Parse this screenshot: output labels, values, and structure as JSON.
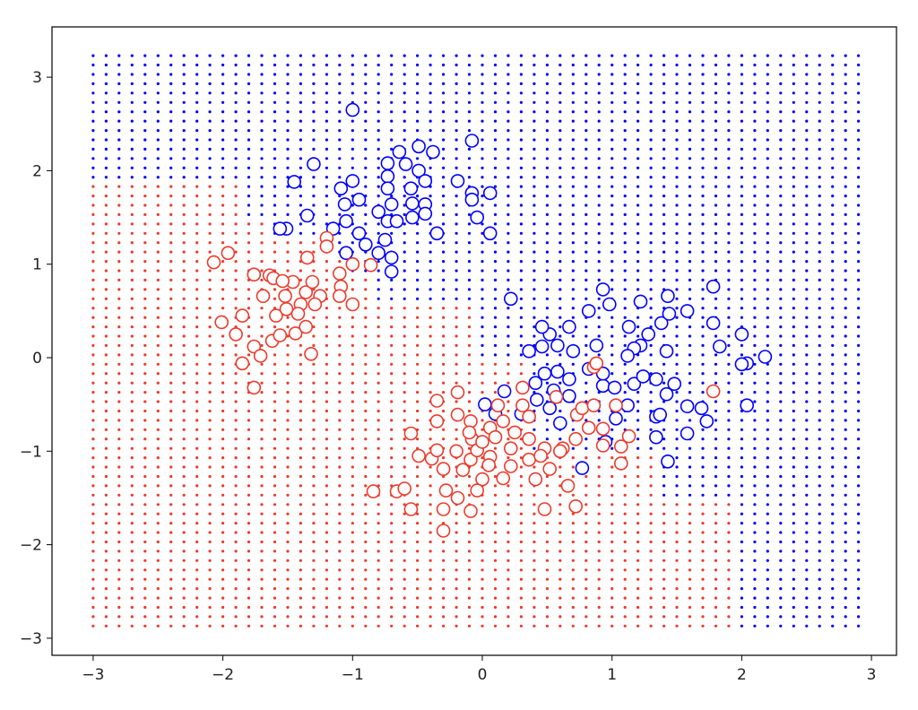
{
  "chart_data": {
    "type": "scatter",
    "title": "",
    "xlabel": "",
    "ylabel": "",
    "xlim": [
      -3.3,
      3.2
    ],
    "ylim": [
      -3.15,
      3.55
    ],
    "grid": false,
    "x_ticks": [
      "−3",
      "−2",
      "−1",
      "0",
      "1",
      "2",
      "3"
    ],
    "y_ticks": [
      "−3",
      "−2",
      "−1",
      "0",
      "1",
      "2",
      "3"
    ],
    "x_tick_values": [
      -3,
      -2,
      -1,
      0,
      1,
      2,
      3
    ],
    "y_tick_values": [
      -3,
      -2,
      -1,
      0,
      1,
      2,
      3
    ],
    "colors": {
      "class_0": "#0000ff",
      "class_1": "#ee3a2c"
    },
    "decision_grid": {
      "x_start": -3.0,
      "x_end": 2.9,
      "y_start": -2.87,
      "y_end": 3.23,
      "step": 0.1,
      "red_region_upper_bound": [
        {
          "x_from": -3.0,
          "x_to": -1.85,
          "y_max": 1.85
        },
        {
          "x_from": -1.85,
          "x_to": -1.65,
          "y_max": 1.45
        },
        {
          "x_from": -1.65,
          "x_to": -1.25,
          "y_max": 1.25
        },
        {
          "x_from": -1.25,
          "x_to": -1.0,
          "y_max": 1.05
        },
        {
          "x_from": -1.0,
          "x_to": -0.85,
          "y_max": 0.85
        },
        {
          "x_from": -0.85,
          "x_to": -0.05,
          "y_max": 0.57
        },
        {
          "x_from": -0.05,
          "x_to": 0.35,
          "y_max": 0.0
        },
        {
          "x_from": 0.35,
          "x_to": 1.35,
          "y_max": -1.05
        },
        {
          "x_from": 1.35,
          "x_to": 1.95,
          "y_max": -1.55
        }
      ]
    },
    "series": [
      {
        "color": "#0000ff",
        "points": [
          [
            -1.0,
            2.65
          ],
          [
            -1.3,
            2.07
          ],
          [
            -1.45,
            1.88
          ],
          [
            -1.35,
            1.52
          ],
          [
            -1.51,
            1.38
          ],
          [
            -1.56,
            1.38
          ],
          [
            -1.15,
            1.38
          ],
          [
            -1.09,
            1.81
          ],
          [
            -1.0,
            1.89
          ],
          [
            -0.95,
            1.69
          ],
          [
            -1.06,
            1.64
          ],
          [
            -1.05,
            1.46
          ],
          [
            -0.95,
            1.33
          ],
          [
            -0.9,
            1.21
          ],
          [
            -0.8,
            1.12
          ],
          [
            -0.7,
            1.07
          ],
          [
            -0.7,
            0.92
          ],
          [
            -1.05,
            1.12
          ],
          [
            -0.75,
            1.26
          ],
          [
            -0.8,
            1.56
          ],
          [
            -0.7,
            1.64
          ],
          [
            -0.73,
            1.46
          ],
          [
            -0.66,
            1.46
          ],
          [
            -0.73,
            2.08
          ],
          [
            -0.73,
            1.94
          ],
          [
            -0.73,
            1.81
          ],
          [
            -0.64,
            2.2
          ],
          [
            -0.59,
            2.07
          ],
          [
            -0.49,
            2.26
          ],
          [
            -0.38,
            2.2
          ],
          [
            -0.49,
            2.0
          ],
          [
            -0.44,
            1.89
          ],
          [
            -0.55,
            1.81
          ],
          [
            -0.54,
            1.65
          ],
          [
            -0.44,
            1.64
          ],
          [
            -0.54,
            1.5
          ],
          [
            -0.44,
            1.54
          ],
          [
            -0.35,
            1.33
          ],
          [
            -0.19,
            1.89
          ],
          [
            -0.08,
            2.32
          ],
          [
            -0.08,
            1.76
          ],
          [
            -0.08,
            1.69
          ],
          [
            0.06,
            1.76
          ],
          [
            -0.04,
            1.5
          ],
          [
            0.06,
            1.33
          ],
          [
            0.22,
            0.63
          ],
          [
            0.93,
            0.73
          ],
          [
            0.98,
            0.57
          ],
          [
            0.82,
            0.5
          ],
          [
            1.22,
            0.6
          ],
          [
            1.43,
            0.66
          ],
          [
            1.58,
            0.5
          ],
          [
            1.78,
            0.76
          ],
          [
            1.78,
            0.37
          ],
          [
            2.0,
            0.25
          ],
          [
            2.18,
            0.01
          ],
          [
            2.04,
            -0.06
          ],
          [
            2.0,
            -0.07
          ],
          [
            1.83,
            0.12
          ],
          [
            1.42,
            0.07
          ],
          [
            1.38,
            0.37
          ],
          [
            1.44,
            0.47
          ],
          [
            1.28,
            0.25
          ],
          [
            1.22,
            0.13
          ],
          [
            1.17,
            0.1
          ],
          [
            1.12,
            0.02
          ],
          [
            1.13,
            0.33
          ],
          [
            0.88,
            0.13
          ],
          [
            0.7,
            0.07
          ],
          [
            0.67,
            0.33
          ],
          [
            0.52,
            0.25
          ],
          [
            0.46,
            0.33
          ],
          [
            0.58,
            0.13
          ],
          [
            0.46,
            0.12
          ],
          [
            0.36,
            0.07
          ],
          [
            0.48,
            -0.17
          ],
          [
            0.58,
            -0.15
          ],
          [
            0.67,
            -0.23
          ],
          [
            0.41,
            -0.27
          ],
          [
            0.17,
            -0.36
          ],
          [
            0.52,
            -0.54
          ],
          [
            0.67,
            -0.41
          ],
          [
            0.93,
            -0.3
          ],
          [
            1.02,
            -0.32
          ],
          [
            0.82,
            -0.12
          ],
          [
            0.93,
            -0.17
          ],
          [
            1.12,
            -0.51
          ],
          [
            1.17,
            -0.28
          ],
          [
            1.24,
            -0.2
          ],
          [
            1.34,
            -0.23
          ],
          [
            1.48,
            -0.28
          ],
          [
            1.42,
            -0.39
          ],
          [
            1.03,
            -0.65
          ],
          [
            1.34,
            -0.63
          ],
          [
            1.37,
            -0.61
          ],
          [
            1.58,
            -0.52
          ],
          [
            1.69,
            -0.54
          ],
          [
            1.73,
            -0.68
          ],
          [
            1.58,
            -0.81
          ],
          [
            1.34,
            -0.85
          ],
          [
            2.04,
            -0.51
          ],
          [
            1.43,
            -1.11
          ],
          [
            0.77,
            -1.18
          ],
          [
            0.42,
            -0.45
          ],
          [
            0.3,
            -0.6
          ],
          [
            0.02,
            -0.5
          ],
          [
            0.1,
            -0.6
          ],
          [
            0.55,
            -0.35
          ],
          [
            0.95,
            -0.9
          ],
          [
            0.6,
            -0.7
          ]
        ]
      },
      {
        "color": "#ee3a2c",
        "points": [
          [
            -2.07,
            1.02
          ],
          [
            -1.96,
            1.12
          ],
          [
            -2.01,
            0.38
          ],
          [
            -1.85,
            0.45
          ],
          [
            -1.9,
            0.25
          ],
          [
            -1.85,
            -0.06
          ],
          [
            -1.76,
            0.89
          ],
          [
            -1.76,
            0.12
          ],
          [
            -1.71,
            0.02
          ],
          [
            -1.76,
            -0.32
          ],
          [
            -1.69,
            0.66
          ],
          [
            -1.64,
            0.88
          ],
          [
            -1.62,
            0.18
          ],
          [
            -1.59,
            0.45
          ],
          [
            -1.56,
            0.24
          ],
          [
            -1.61,
            0.85
          ],
          [
            -1.52,
            0.66
          ],
          [
            -1.51,
            0.52
          ],
          [
            -1.46,
            0.81
          ],
          [
            -1.44,
            0.26
          ],
          [
            -1.4,
            0.57
          ],
          [
            -1.42,
            0.47
          ],
          [
            -1.36,
            0.7
          ],
          [
            -1.35,
            1.07
          ],
          [
            -1.36,
            0.33
          ],
          [
            -1.32,
            0.04
          ],
          [
            -1.31,
            0.81
          ],
          [
            -1.25,
            0.66
          ],
          [
            -1.2,
            1.28
          ],
          [
            -1.2,
            1.19
          ],
          [
            -1.1,
            0.9
          ],
          [
            -1.09,
            0.76
          ],
          [
            -1.1,
            0.66
          ],
          [
            -1.0,
            0.57
          ],
          [
            -1.0,
            1.0
          ],
          [
            -0.86,
            0.99
          ],
          [
            -1.29,
            0.57
          ],
          [
            -1.54,
            0.82
          ],
          [
            -0.84,
            -1.43
          ],
          [
            -0.66,
            -1.43
          ],
          [
            -0.6,
            -1.4
          ],
          [
            -0.55,
            -0.81
          ],
          [
            -0.55,
            -1.62
          ],
          [
            -0.49,
            -1.05
          ],
          [
            -0.39,
            -1.08
          ],
          [
            -0.35,
            -0.99
          ],
          [
            -0.35,
            -0.46
          ],
          [
            -0.35,
            -0.68
          ],
          [
            -0.19,
            -0.37
          ],
          [
            -0.19,
            -0.61
          ],
          [
            -0.3,
            -1.19
          ],
          [
            -0.28,
            -1.42
          ],
          [
            -0.3,
            -1.62
          ],
          [
            -0.3,
            -1.85
          ],
          [
            -0.19,
            -1.5
          ],
          [
            -0.09,
            -1.64
          ],
          [
            -0.09,
            -0.68
          ],
          [
            -0.08,
            -0.87
          ],
          [
            -0.09,
            -1.09
          ],
          [
            -0.04,
            -0.99
          ],
          [
            0.0,
            -1.3
          ],
          [
            -0.04,
            -1.42
          ],
          [
            0.06,
            -0.75
          ],
          [
            0.06,
            -1.06
          ],
          [
            0.12,
            -0.51
          ],
          [
            0.16,
            -0.68
          ],
          [
            0.22,
            -0.97
          ],
          [
            0.22,
            -1.16
          ],
          [
            0.16,
            -1.29
          ],
          [
            0.31,
            -0.32
          ],
          [
            0.31,
            -0.51
          ],
          [
            0.36,
            -0.63
          ],
          [
            0.36,
            -0.87
          ],
          [
            0.36,
            -1.09
          ],
          [
            0.48,
            -0.97
          ],
          [
            0.52,
            -1.19
          ],
          [
            0.41,
            -1.3
          ],
          [
            0.48,
            -1.62
          ],
          [
            0.57,
            -0.42
          ],
          [
            0.62,
            -0.97
          ],
          [
            0.66,
            -1.37
          ],
          [
            0.72,
            -1.59
          ],
          [
            0.72,
            -0.87
          ],
          [
            0.73,
            -0.61
          ],
          [
            0.77,
            -0.54
          ],
          [
            0.82,
            -0.75
          ],
          [
            0.86,
            -0.51
          ],
          [
            0.93,
            -0.76
          ],
          [
            0.93,
            -0.94
          ],
          [
            1.03,
            -0.51
          ],
          [
            1.07,
            -0.95
          ],
          [
            1.13,
            -0.84
          ],
          [
            1.07,
            -1.13
          ],
          [
            0.86,
            -0.1
          ],
          [
            0.88,
            -0.06
          ],
          [
            1.78,
            -0.36
          ],
          [
            -0.1,
            -0.8
          ],
          [
            0.0,
            -0.9
          ],
          [
            0.1,
            -0.85
          ],
          [
            -0.2,
            -1.0
          ],
          [
            0.25,
            -0.8
          ],
          [
            0.45,
            -1.05
          ],
          [
            0.6,
            -1.0
          ],
          [
            -0.15,
            -1.2
          ],
          [
            0.05,
            -1.15
          ]
        ]
      }
    ]
  }
}
